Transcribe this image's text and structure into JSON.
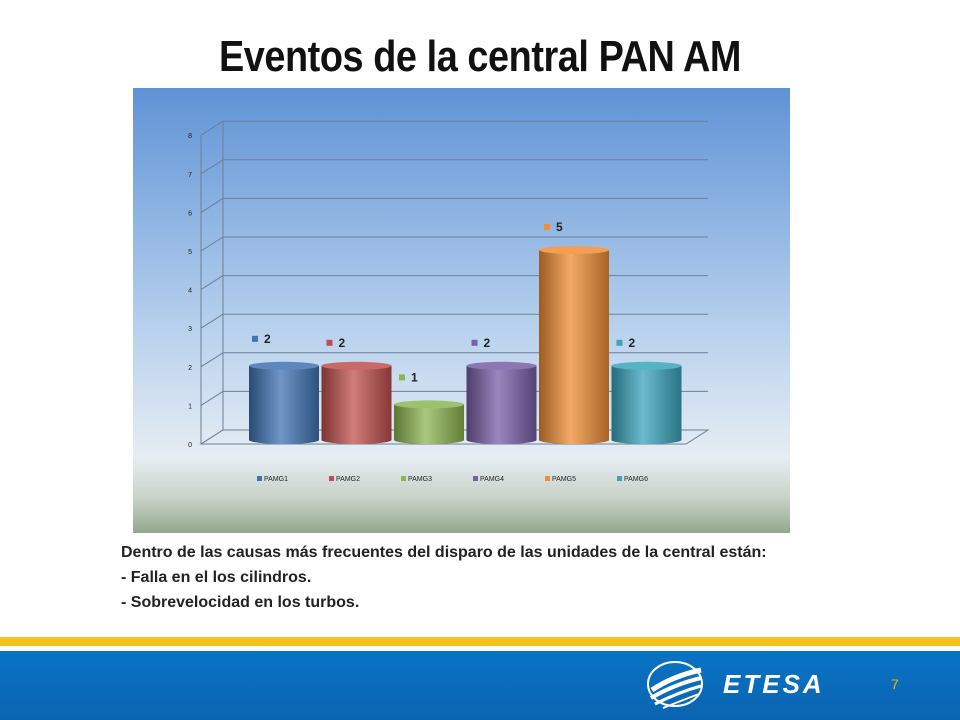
{
  "slide": {
    "title": "Eventos de la central PAN AM",
    "page_number": "7",
    "body_lines": [
      "Dentro de las causas más frecuentes del disparo de las unidades de la central están:",
      "- Falla en el los cilindros.",
      "- Sobrevelocidad en los turbos."
    ]
  },
  "logo": {
    "text": "ETESA",
    "icon": "etesa-globe-logo"
  },
  "colors": {
    "title": "#111111",
    "footer_blue": "#0b6bb9",
    "footer_yellow": "#f4c21a",
    "page_number": "#f4b400"
  },
  "chart_data": {
    "type": "bar",
    "style": "3d-cylinder",
    "categories": [
      "PAMG1",
      "PAMG2",
      "PAMG3",
      "PAMG4",
      "PAMG5",
      "PAMG6"
    ],
    "values": [
      2,
      2,
      1,
      2,
      5,
      2
    ],
    "data_labels": [
      "2",
      "2",
      "1",
      "2",
      "5",
      "2"
    ],
    "colors": [
      "#3f73b3",
      "#c0504d",
      "#8db651",
      "#7a5ea8",
      "#f08d35",
      "#3aa4bc"
    ],
    "yticks": [
      "0",
      "1",
      "2",
      "3",
      "4",
      "5",
      "6",
      "7",
      "8"
    ],
    "ylim": [
      0,
      8
    ],
    "grid": true,
    "legend": "bottom",
    "title": "",
    "xlabel": "",
    "ylabel": ""
  }
}
